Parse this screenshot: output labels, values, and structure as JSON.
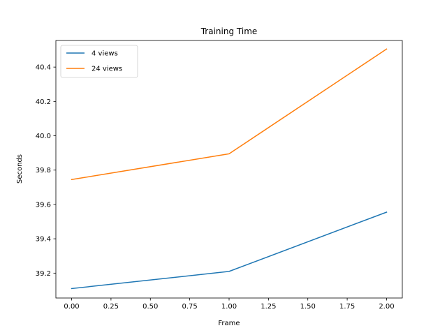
{
  "chart_data": {
    "type": "line",
    "title": "Training Time",
    "xlabel": "Frame",
    "ylabel": "Seconds",
    "x": [
      0,
      1,
      2
    ],
    "xlim": [
      -0.1,
      2.1
    ],
    "ylim": [
      39.055,
      40.555
    ],
    "xticks": [
      0.0,
      0.25,
      0.5,
      0.75,
      1.0,
      1.25,
      1.5,
      1.75,
      2.0
    ],
    "xtick_labels": [
      "0.00",
      "0.25",
      "0.50",
      "0.75",
      "1.00",
      "1.25",
      "1.50",
      "1.75",
      "2.00"
    ],
    "yticks": [
      39.2,
      39.4,
      39.6,
      39.8,
      40.0,
      40.2,
      40.4
    ],
    "ytick_labels": [
      "39.2",
      "39.4",
      "39.6",
      "39.8",
      "40.0",
      "40.2",
      "40.4"
    ],
    "grid": false,
    "legend_position": "top-left",
    "series": [
      {
        "name": "4 views",
        "color": "#1f77b4",
        "values": [
          39.11,
          39.21,
          39.555
        ]
      },
      {
        "name": "24 views",
        "color": "#ff7f0e",
        "values": [
          39.745,
          39.895,
          40.505
        ]
      }
    ]
  }
}
